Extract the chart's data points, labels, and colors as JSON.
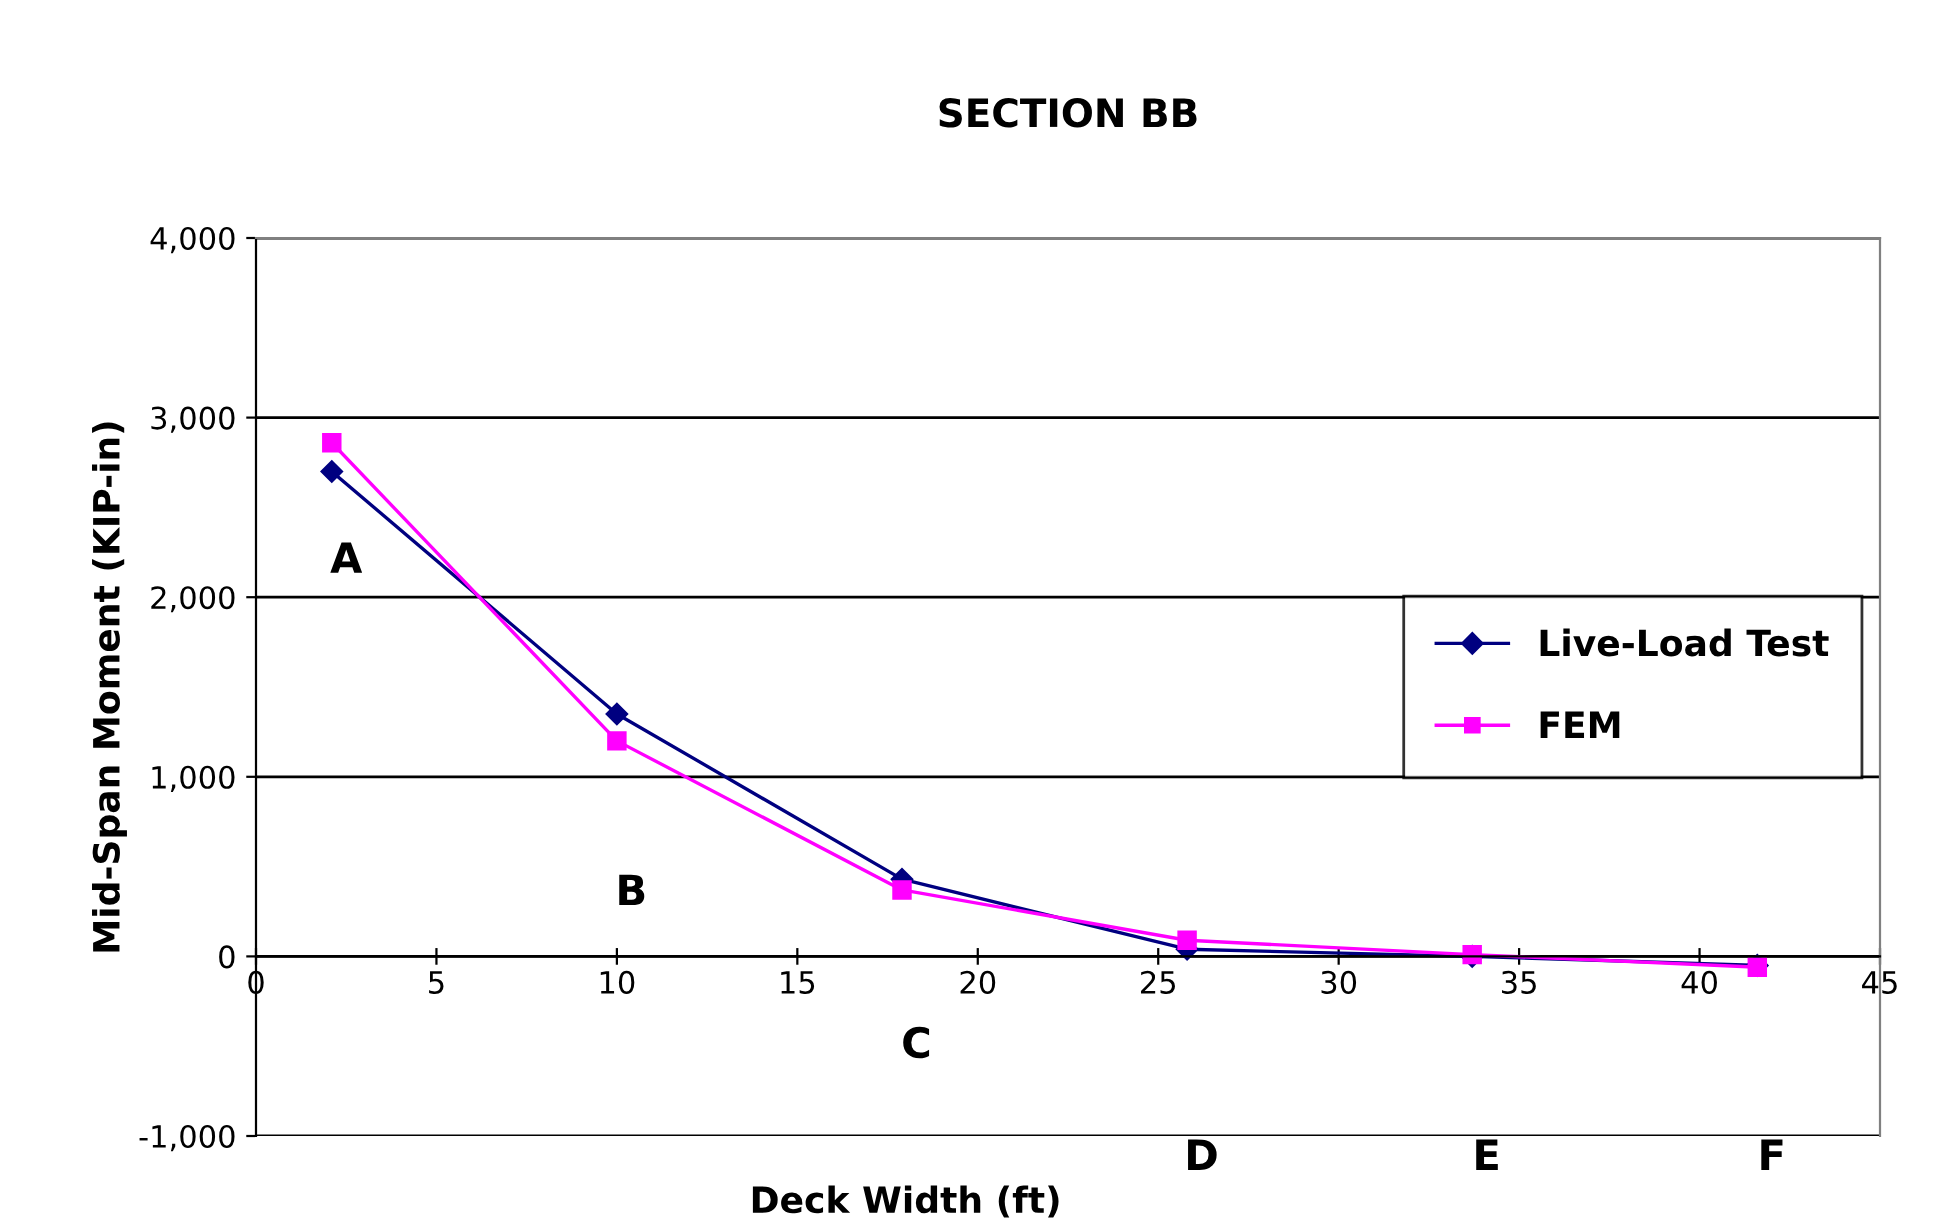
{
  "chart_data": {
    "type": "line",
    "title": "SECTION BB",
    "xlabel": "Deck Width (ft)",
    "ylabel": "Mid-Span Moment (KIP-in)",
    "series": [
      {
        "name": "Live-Load Test",
        "color": "#000080",
        "marker": "diamond",
        "x": [
          2.1,
          10,
          17.9,
          25.8,
          33.7,
          41.6
        ],
        "values": [
          2700,
          1350,
          430,
          40,
          0,
          -50
        ]
      },
      {
        "name": "FEM",
        "color": "#ff00ff",
        "marker": "square",
        "x": [
          2.1,
          10,
          17.9,
          25.8,
          33.7,
          41.6
        ],
        "values": [
          2860,
          1200,
          370,
          90,
          10,
          -60
        ]
      }
    ],
    "xlim": [
      0,
      45
    ],
    "xticks": [
      0,
      5,
      10,
      15,
      20,
      25,
      30,
      35,
      40,
      45
    ],
    "ylim": [
      -1000,
      4000
    ],
    "yticks": [
      {
        "value": -1000,
        "label": "-1,000"
      },
      0,
      {
        "value": 1000,
        "label": "1,000"
      },
      {
        "value": 2000,
        "label": "2,000"
      },
      {
        "value": 3000,
        "label": "3,000"
      },
      {
        "value": 4000,
        "label": "4,000"
      }
    ],
    "grid": "y",
    "legend": "right",
    "annotations": [
      "A",
      "B",
      "C",
      "D",
      "E",
      "F"
    ]
  }
}
